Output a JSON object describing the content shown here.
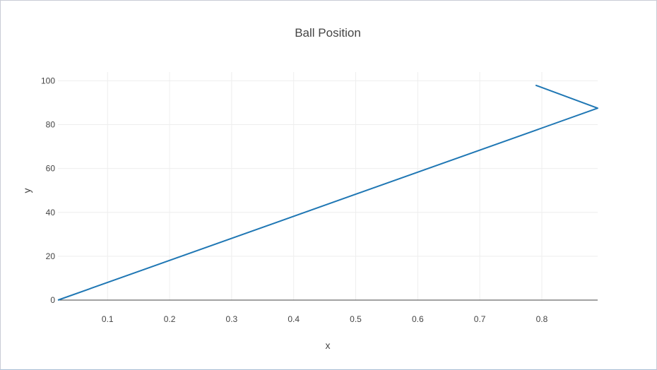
{
  "chart_data": {
    "type": "line",
    "title": "Ball Position",
    "xlabel": "x",
    "ylabel": "y",
    "xlim": [
      0.02,
      0.89
    ],
    "ylim": [
      0,
      104
    ],
    "x_ticks": [
      0.1,
      0.2,
      0.3,
      0.4,
      0.5,
      0.6,
      0.7,
      0.8
    ],
    "x_tick_labels": [
      "0.1",
      "0.2",
      "0.3",
      "0.4",
      "0.5",
      "0.6",
      "0.7",
      "0.8"
    ],
    "y_ticks": [
      0,
      20,
      40,
      60,
      80,
      100
    ],
    "y_tick_labels": [
      "0",
      "20",
      "40",
      "60",
      "80",
      "100"
    ],
    "grid": true,
    "series": [
      {
        "color": "#1f77b4",
        "x": [
          0.02,
          0.89,
          0.79
        ],
        "y": [
          0,
          87.5,
          98
        ]
      }
    ]
  }
}
